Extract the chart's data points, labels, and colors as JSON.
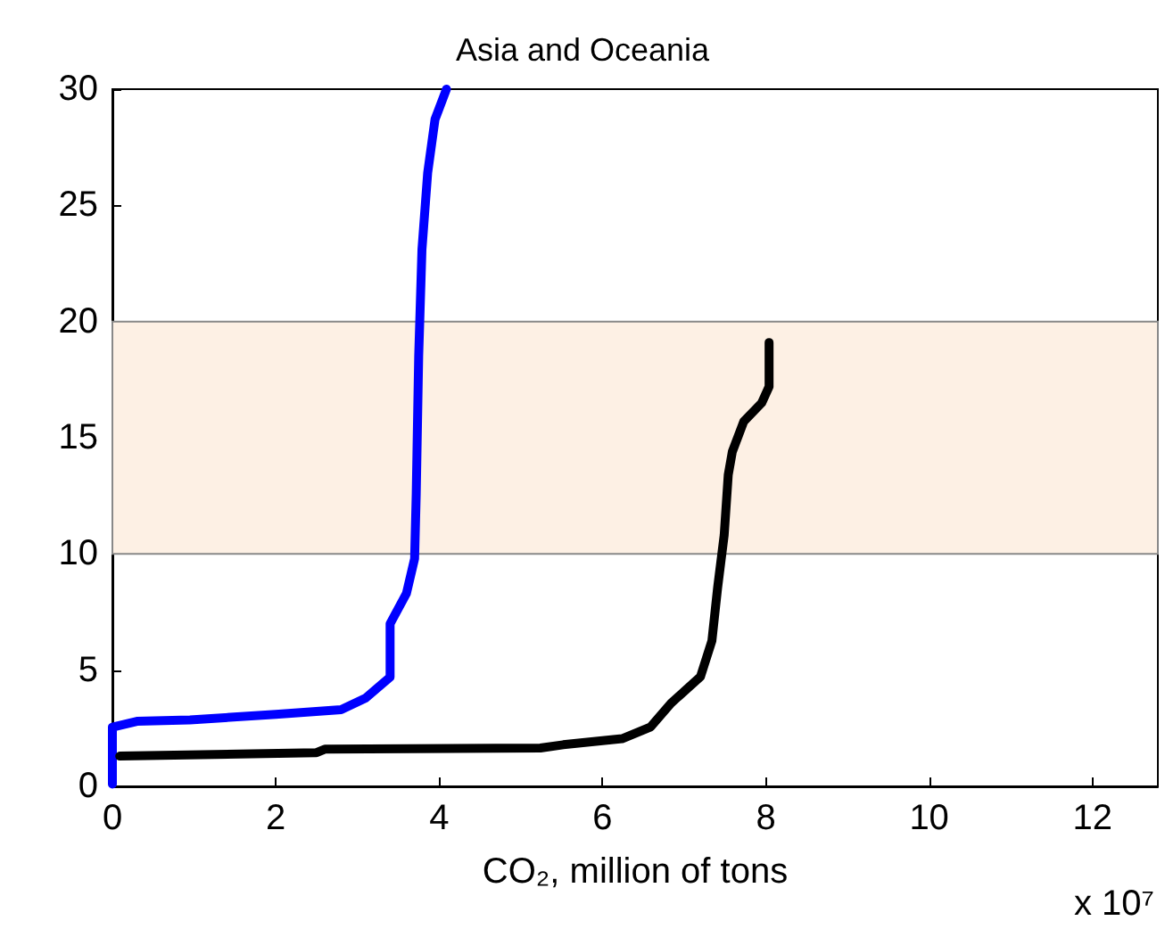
{
  "chart_data": {
    "type": "line",
    "title": "Asia and Oceania",
    "xlabel": "CO₂, million of tons",
    "annotations": [
      "x 10⁷"
    ],
    "xlim": [
      0,
      12.8
    ],
    "xticks": [
      0,
      2,
      4,
      6,
      8,
      10,
      12
    ],
    "ylim": [
      0,
      30
    ],
    "yticks": [
      0,
      5,
      10,
      15,
      20,
      25,
      30
    ],
    "grid": false,
    "marker": "none",
    "line_style": "solid",
    "bands": [
      {
        "axis": "y",
        "from": 10,
        "to": 20,
        "color": "#fdf0e4"
      }
    ],
    "series": [
      {
        "color": "#0000ff",
        "x": [
          0,
          0,
          0.3,
          0.95,
          2.0,
          2.8,
          3.1,
          3.4,
          3.4,
          3.6,
          3.7,
          3.72,
          3.75,
          3.79,
          3.86,
          3.95,
          4.09
        ],
        "values": [
          0.1,
          2.55,
          2.8,
          2.86,
          3.1,
          3.3,
          3.8,
          4.7,
          7.0,
          8.3,
          9.8,
          12.6,
          18.5,
          23.1,
          26.4,
          28.7,
          30
        ]
      },
      {
        "color": "#000000",
        "x": [
          0.09,
          2.5,
          2.6,
          5.24,
          5.52,
          6.24,
          6.59,
          6.84,
          7.2,
          7.34,
          7.41,
          7.49,
          7.54,
          7.59,
          7.73,
          7.95,
          8.04,
          8.04
        ],
        "values": [
          1.3,
          1.45,
          1.6,
          1.65,
          1.79,
          2.05,
          2.56,
          3.58,
          4.72,
          6.26,
          8.55,
          10.8,
          13.4,
          14.4,
          15.7,
          16.5,
          17.2,
          19.1
        ]
      }
    ]
  }
}
